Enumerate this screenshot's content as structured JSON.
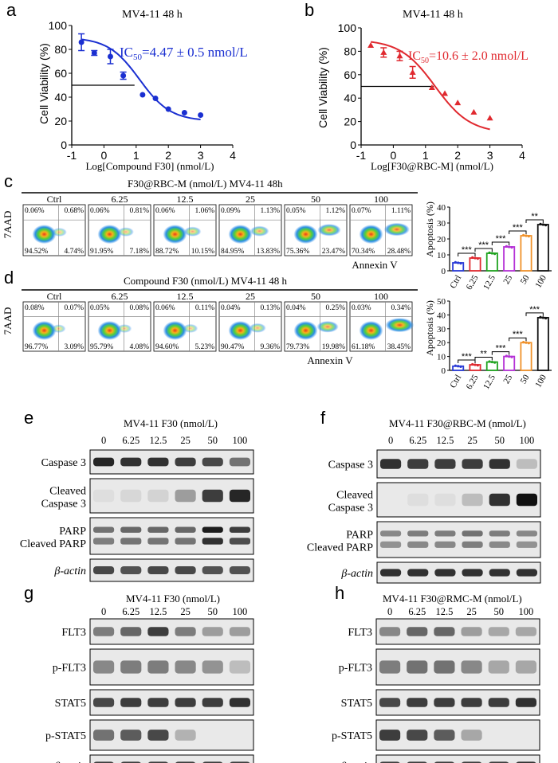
{
  "panels": {
    "a": {
      "letter": "a",
      "title": "MV4-11  48 h",
      "ic50_prefix": "IC",
      "ic50_sub": "50",
      "ic50_value": "=4.47 ± 0.5  nmol/L",
      "ylabel": "Cell Viability (%)",
      "xlabel": "Log[Compound F30] (nmol/L)",
      "color": "#1a2fd1"
    },
    "b": {
      "letter": "b",
      "title": "MV4-11  48 h",
      "ic50_prefix": "IC",
      "ic50_sub": "50",
      "ic50_value": "=10.6 ± 2.0 nmol/L",
      "ylabel": "Cell Viability (%)",
      "xlabel": "Log[F30@RBC-M] (nmol/L)",
      "color": "#e0292f"
    },
    "c": {
      "letter": "c",
      "header": "F30@RBC-M (nmol/L) MV4-11 48h",
      "ylabel": "7AAD",
      "xlabel": "Annexin V",
      "bar_ylabel": "Apoptosis (%)"
    },
    "d": {
      "letter": "d",
      "header": "Compound F30 (nmol/L)  MV4-11 48 h",
      "ylabel": "7AAD",
      "xlabel": "Annexin V",
      "bar_ylabel": "Apoptosis (%)"
    },
    "e": {
      "letter": "e",
      "header": "MV4-11 F30 (nmol/L)"
    },
    "f": {
      "letter": "f",
      "header": "MV4-11 F30@RBC-M (nmol/L)"
    },
    "g": {
      "letter": "g",
      "header": "MV4-11 F30 (nmol/L)"
    },
    "h": {
      "letter": "h",
      "header": "MV4-11 F30@RMC-M (nmol/L)"
    }
  },
  "flow_c": [
    {
      "label": "Ctrl",
      "ul": "0.06%",
      "ur": "0.68%",
      "ll": "94.52%",
      "lr": "4.74%"
    },
    {
      "label": "6.25",
      "ul": "0.06%",
      "ur": "0.81%",
      "ll": "91.95%",
      "lr": "7.18%"
    },
    {
      "label": "12.5",
      "ul": "0.06%",
      "ur": "1.06%",
      "ll": "88.72%",
      "lr": "10.15%"
    },
    {
      "label": "25",
      "ul": "0.09%",
      "ur": "1.13%",
      "ll": "84.95%",
      "lr": "13.83%"
    },
    {
      "label": "50",
      "ul": "0.05%",
      "ur": "1.12%",
      "ll": "75.36%",
      "lr": "23.47%"
    },
    {
      "label": "100",
      "ul": "0.07%",
      "ur": "1.11%",
      "ll": "70.34%",
      "lr": "28.48%"
    }
  ],
  "flow_d": [
    {
      "label": "Ctrl",
      "ul": "0.08%",
      "ur": "0.07%",
      "ll": "96.77%",
      "lr": "3.09%"
    },
    {
      "label": "6.25",
      "ul": "0.05%",
      "ur": "0.08%",
      "ll": "95.79%",
      "lr": "4.08%"
    },
    {
      "label": "12.5",
      "ul": "0.06%",
      "ur": "0.11%",
      "ll": "94.60%",
      "lr": "5.23%"
    },
    {
      "label": "25",
      "ul": "0.04%",
      "ur": "0.13%",
      "ll": "90.47%",
      "lr": "9.36%"
    },
    {
      "label": "50",
      "ul": "0.04%",
      "ur": "0.25%",
      "ll": "79.73%",
      "lr": "19.98%"
    },
    {
      "label": "100",
      "ul": "0.03%",
      "ur": "0.34%",
      "ll": "61.18%",
      "lr": "38.45%"
    }
  ],
  "blots": {
    "e": {
      "lanes": [
        "0",
        "6.25",
        "12.5",
        "25",
        "50",
        "100"
      ],
      "rows": [
        "Caspase 3",
        "Cleaved Caspase 3",
        "PARP Cleaved PARP",
        "β-actin"
      ]
    },
    "f": {
      "lanes": [
        "0",
        "6.25",
        "12.5",
        "25",
        "50",
        "100"
      ],
      "rows": [
        "Caspase 3",
        "Cleaved Caspase 3",
        "PARP Cleaved PARP",
        "β-actin"
      ]
    },
    "g": {
      "lanes": [
        "0",
        "6.25",
        "12.5",
        "25",
        "50",
        "100"
      ],
      "rows": [
        "FLT3",
        "p-FLT3",
        "STAT5",
        "p-STAT5",
        "β-actin"
      ]
    },
    "h": {
      "lanes": [
        "0",
        "6.25",
        "12.5",
        "25",
        "50",
        "100"
      ],
      "rows": [
        "FLT3",
        "p-FLT3",
        "STAT5",
        "p-STAT5",
        "β-actin"
      ]
    }
  },
  "chart_data": [
    {
      "id": "a",
      "type": "scatter",
      "title": "MV4-11  48 h",
      "xlabel": "Log[Compound F30] (nmol/L)",
      "ylabel": "Cell Viability (%)",
      "xlim": [
        -1,
        4
      ],
      "ylim": [
        0,
        100
      ],
      "xticks": [
        -1,
        0,
        1,
        2,
        3,
        4
      ],
      "yticks": [
        0,
        20,
        40,
        60,
        80,
        100
      ],
      "x": [
        -0.7,
        -0.3,
        0.2,
        0.6,
        1.2,
        1.6,
        2.0,
        2.5,
        3.0
      ],
      "y": [
        86,
        77,
        74,
        58,
        42,
        39,
        30,
        27,
        25
      ],
      "err": [
        7,
        2,
        6,
        3,
        0,
        0,
        0,
        0,
        0
      ],
      "fit": {
        "top": 90,
        "bottom": 20,
        "logIC50": 1.1,
        "hill": 0.9,
        "xmin": -0.7,
        "xmax": 3.0
      },
      "ref_line": {
        "y": 50,
        "x_from": -1,
        "x_to": 0.95
      }
    },
    {
      "id": "b",
      "type": "scatter",
      "title": "MV4-11  48 h",
      "xlabel": "Log[F30@RBC-M] (nmol/L)",
      "ylabel": "Cell Viability (%)",
      "xlim": [
        -1,
        4
      ],
      "ylim": [
        0,
        100
      ],
      "xticks": [
        -1,
        0,
        1,
        2,
        3,
        4
      ],
      "yticks": [
        0,
        20,
        40,
        60,
        80,
        100
      ],
      "x": [
        -0.7,
        -0.3,
        0.2,
        0.6,
        1.2,
        1.6,
        2.0,
        2.5,
        3.0
      ],
      "y": [
        85,
        79,
        76,
        62,
        49,
        44,
        36,
        28,
        23
      ],
      "err": [
        0,
        4,
        4,
        5,
        0,
        0,
        0,
        0,
        0
      ],
      "fit": {
        "top": 90,
        "bottom": 10,
        "logIC50": 1.3,
        "hill": 0.8,
        "xmin": -0.7,
        "xmax": 3.0
      },
      "ref_line": {
        "y": 50,
        "x_from": -1,
        "x_to": 1.25
      }
    },
    {
      "id": "c-bar",
      "type": "bar",
      "ylabel": "Apoptosis (%)",
      "categories": [
        "Ctrl",
        "6.25",
        "12.5",
        "25",
        "50",
        "100"
      ],
      "values": [
        5,
        8,
        11,
        15,
        22,
        29
      ],
      "ylim": [
        0,
        40
      ],
      "yticks": [
        0,
        10,
        20,
        30,
        40
      ],
      "colors": [
        "#2a3bd6",
        "#e0292f",
        "#1fa31f",
        "#b531d6",
        "#f0922b",
        "#111111"
      ],
      "significance": [
        "***",
        "***",
        "***",
        "***",
        "**"
      ]
    },
    {
      "id": "d-bar",
      "type": "bar",
      "ylabel": "Apoptosis (%)",
      "categories": [
        "Ctrl",
        "6.25",
        "12.5",
        "25",
        "50",
        "100"
      ],
      "values": [
        3,
        4,
        6,
        10,
        20,
        38
      ],
      "ylim": [
        0,
        50
      ],
      "yticks": [
        0,
        10,
        20,
        30,
        40,
        50
      ],
      "colors": [
        "#2a3bd6",
        "#e0292f",
        "#1fa31f",
        "#b531d6",
        "#f0922b",
        "#111111"
      ],
      "significance": [
        "***",
        "**",
        "***",
        "***",
        "***"
      ]
    }
  ]
}
